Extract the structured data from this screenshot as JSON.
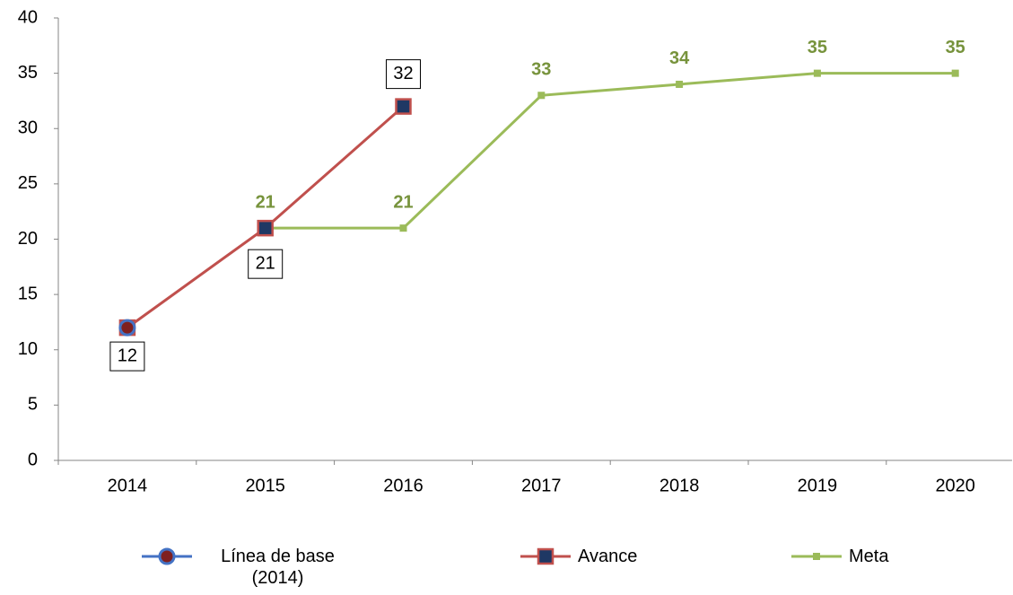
{
  "chart_data": {
    "type": "line",
    "categories": [
      "2014",
      "2015",
      "2016",
      "2017",
      "2018",
      "2019",
      "2020"
    ],
    "series": [
      {
        "name": "Línea de base (2014)",
        "color": "#4472c4",
        "marker_color": "#7f1f1f",
        "values": [
          12,
          null,
          null,
          null,
          null,
          null,
          null
        ]
      },
      {
        "name": "Avance",
        "color": "#c0504d",
        "marker_color": "#1f3864",
        "values": [
          12,
          21,
          32,
          null,
          null,
          null,
          null
        ]
      },
      {
        "name": "Meta",
        "color": "#9bbb59",
        "marker_color": "#9bbb59",
        "label_color": "#77933c",
        "values": [
          null,
          21,
          21,
          33,
          34,
          35,
          35
        ]
      }
    ],
    "ylim": [
      0,
      40
    ],
    "yticks": [
      0,
      5,
      10,
      15,
      20,
      25,
      30,
      35,
      40
    ],
    "grid": false,
    "legend": "bottom"
  }
}
